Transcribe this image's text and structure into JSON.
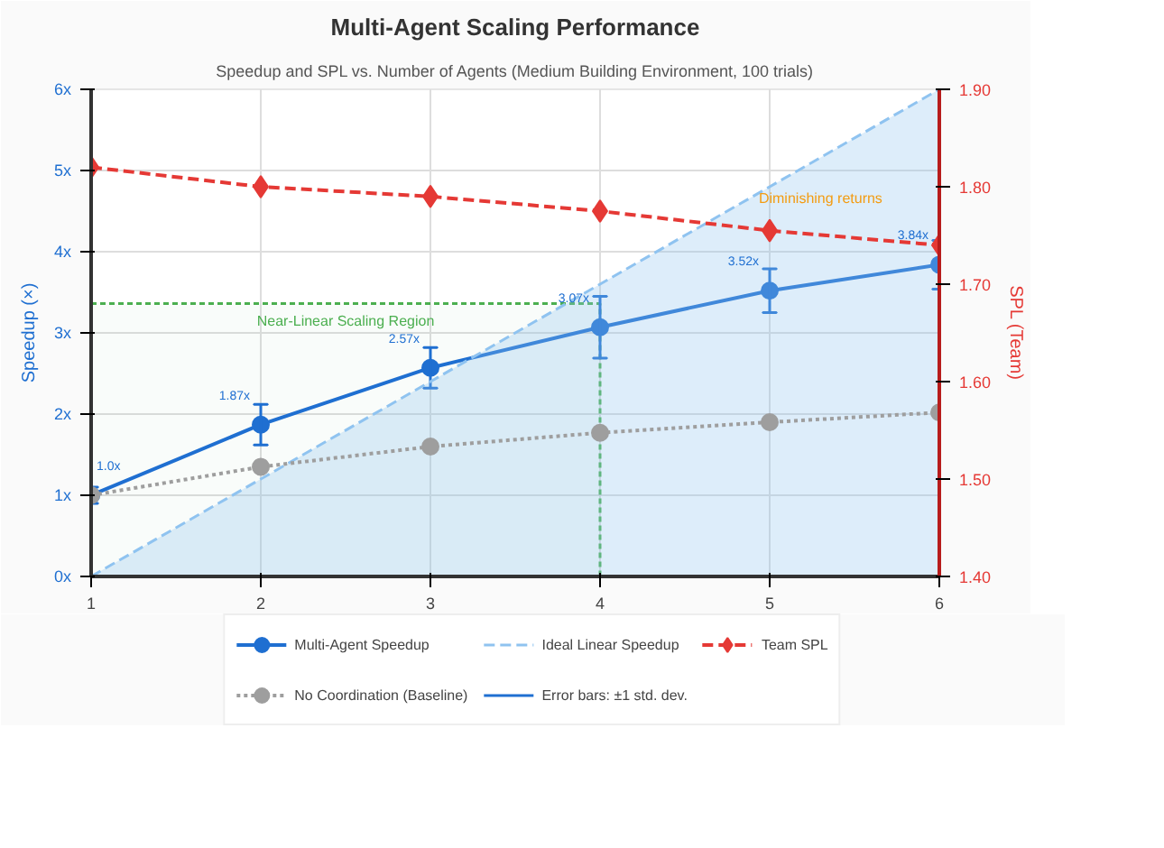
{
  "chart_data": {
    "type": "line",
    "title": "Multi-Agent Scaling Performance",
    "subtitle": "Speedup and SPL vs. Number of Agents (Medium Building Environment, 100 trials)",
    "ylabel": "Speedup (×)",
    "y2label": "SPL (Team)",
    "x": [
      1,
      2,
      3,
      4,
      5,
      6
    ],
    "xlim": [
      1,
      6
    ],
    "xticks": [
      1,
      2,
      3,
      4,
      5,
      6
    ],
    "ylim": [
      0,
      6
    ],
    "yticks": [
      {
        "value": 0,
        "label": "0x"
      },
      {
        "value": 1,
        "label": "1x"
      },
      {
        "value": 2,
        "label": "2x"
      },
      {
        "value": 3,
        "label": "3x"
      },
      {
        "value": 4,
        "label": "4x"
      },
      {
        "value": 5,
        "label": "5x"
      },
      {
        "value": 6,
        "label": "6x"
      }
    ],
    "y2lim": [
      1.4,
      1.9
    ],
    "y2ticks": [
      {
        "value": 1.4,
        "label": "1.40"
      },
      {
        "value": 1.5,
        "label": "1.50"
      },
      {
        "value": 1.6,
        "label": "1.60"
      },
      {
        "value": 1.7,
        "label": "1.70"
      },
      {
        "value": 1.8,
        "label": "1.80"
      },
      {
        "value": 1.9,
        "label": "1.90"
      }
    ],
    "series": [
      {
        "name": "Multi-Agent Speedup",
        "color": "#1f6fd1",
        "values": [
          1.0,
          1.87,
          2.57,
          3.07,
          3.52,
          3.84
        ],
        "errors": [
          0.1,
          0.25,
          0.25,
          0.38,
          0.27,
          0.3
        ],
        "value_labels": [
          "1.0x",
          "1.87x",
          "2.57x",
          "3.07x",
          "3.52x",
          "3.84x"
        ],
        "marker": "circle",
        "line_style": "solid"
      },
      {
        "name": "Ideal Linear Speedup",
        "type": "area",
        "color": "#8fc3f0",
        "values": [
          0,
          1.2,
          2.4,
          3.6,
          4.8,
          6.0
        ],
        "marker": "none",
        "line_style": "dashed"
      },
      {
        "name": "Team SPL",
        "axis": "y2",
        "color": "#e53935",
        "values": [
          1.82,
          1.8,
          1.79,
          1.775,
          1.755,
          1.74
        ],
        "marker": "diamond",
        "line_style": "dashed"
      },
      {
        "name": "No Coordination (Baseline)",
        "color": "#9e9e9e",
        "values": [
          1.0,
          1.35,
          1.6,
          1.77,
          1.9,
          2.02
        ],
        "marker": "circle",
        "line_style": "dotted"
      }
    ],
    "bands": [
      {
        "axis": "x",
        "from": 1,
        "to": 4,
        "label": "Near-Linear Scaling Region",
        "color": "#4caf50"
      }
    ],
    "annotations": [
      "Diminishing returns",
      "Error bars: ±1 std. dev."
    ],
    "grid": true,
    "legend": "bottom"
  }
}
